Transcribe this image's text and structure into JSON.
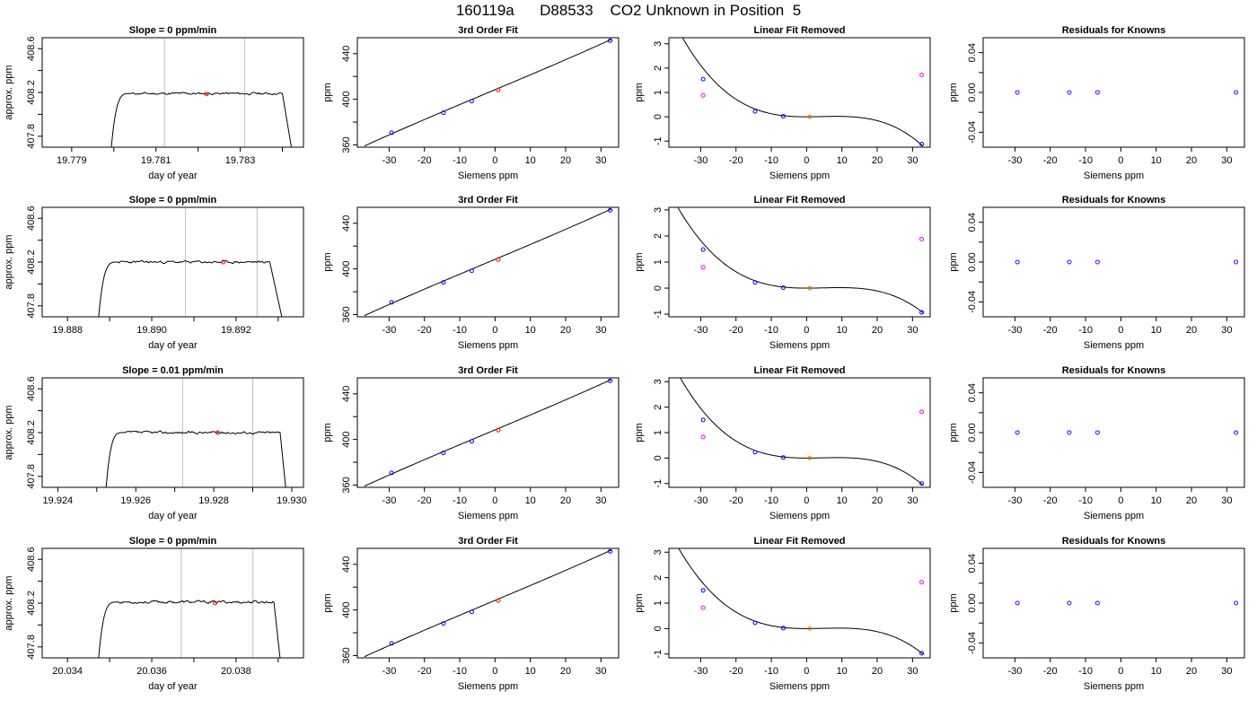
{
  "figure_title": "160119a      D88533    CO2 Unknown in Position  5",
  "colors": {
    "known": "#0000ff",
    "unknown": "#ff0000",
    "unknown_resid": "#ff8000",
    "linear_known": "#ff00ff",
    "curve": "#000000",
    "marker_line": "#bebebe"
  },
  "chart_data": [
    {
      "row": 1,
      "col": 1,
      "type": "line",
      "title": "Slope =  0  ppm/min",
      "xlabel": "day of year",
      "ylabel": "approx. ppm",
      "xlim": [
        19.7783,
        19.7845
      ],
      "ylim": [
        407.7,
        408.7
      ],
      "xticks": [
        19.779,
        19.78,
        19.781,
        19.782,
        19.783,
        19.784
      ],
      "xticklabels": [
        "19.779",
        "",
        "19.781",
        "",
        "19.783",
        ""
      ],
      "yticks": [
        407.8,
        408.0,
        408.2,
        408.4,
        408.6
      ],
      "yticklabels": [
        "407.8",
        "",
        "408.2",
        "",
        "408.6"
      ],
      "trace": {
        "x_start": 19.7799,
        "x_rise_end": 19.7804,
        "x_fall_start": 19.784,
        "x_end": 19.7843,
        "level": 408.19,
        "noise": 0.008,
        "seed": 11
      },
      "vlines": [
        19.7812,
        19.7831
      ],
      "mean_point": [
        19.7822,
        408.185
      ]
    },
    {
      "row": 1,
      "col": 2,
      "type": "scatter",
      "title": "3rd Order Fit",
      "xlabel": "Siemens ppm",
      "ylabel": "ppm",
      "xlim": [
        -39,
        35
      ],
      "ylim": [
        358,
        454
      ],
      "xticks": [
        -30,
        -20,
        -10,
        0,
        10,
        20,
        30
      ],
      "xticklabels": [
        "-30",
        "-20",
        "-10",
        "0",
        "10",
        "20",
        "30"
      ],
      "yticks": [
        360,
        380,
        400,
        420,
        440
      ],
      "yticklabels": [
        "360",
        "",
        "400",
        "",
        "440"
      ],
      "fit_range": [
        -37,
        33
      ],
      "poly": [
        408.4,
        1.3,
        0.0002,
        3e-05
      ],
      "knowns": [
        [
          -29.3,
          370.7
        ],
        [
          -14.6,
          388.2
        ],
        [
          -6.6,
          398.3
        ],
        [
          32.6,
          451.4
        ]
      ],
      "unknown": [
        0.9,
        408.2
      ]
    },
    {
      "row": 1,
      "col": 3,
      "type": "scatter",
      "title": "Linear Fit Removed",
      "xlabel": "Siemens ppm",
      "ylabel": "ppm",
      "xlim": [
        -39,
        35
      ],
      "ylim": [
        -1.25,
        3.25
      ],
      "xticks": [
        -30,
        -20,
        -10,
        0,
        10,
        20,
        30
      ],
      "xticklabels": [
        "-30",
        "-20",
        "-10",
        "0",
        "10",
        "20",
        "30"
      ],
      "yticks": [
        -1,
        0,
        1,
        2,
        3
      ],
      "yticklabels": [
        "-1",
        "0",
        "1",
        "2",
        "3"
      ],
      "fit_range": [
        -37,
        33
      ],
      "poly": [
        0,
        0,
        0.0007,
        -5.5e-05
      ],
      "knowns": [
        [
          -29.3,
          1.55
        ],
        [
          -14.6,
          0.22
        ],
        [
          -6.6,
          0.02
        ],
        [
          32.6,
          -1.12
        ]
      ],
      "linear_knowns": [
        [
          -29.3,
          0.88
        ],
        [
          32.6,
          1.72
        ]
      ],
      "unknown": [
        0.9,
        0.0
      ]
    },
    {
      "row": 1,
      "col": 4,
      "type": "scatter",
      "title": "Residuals for Knowns",
      "xlabel": "Siemens ppm",
      "ylabel": "ppm",
      "xlim": [
        -39,
        35
      ],
      "ylim": [
        -0.055,
        0.055
      ],
      "xticks": [
        -30,
        -20,
        -10,
        0,
        10,
        20,
        30
      ],
      "xticklabels": [
        "-30",
        "-20",
        "-10",
        "0",
        "10",
        "20",
        "30"
      ],
      "yticks": [
        -0.04,
        -0.02,
        0.0,
        0.02,
        0.04
      ],
      "yticklabels": [
        "-0.04",
        "",
        "0.00",
        "",
        "0.04"
      ],
      "residuals": [
        [
          -29.3,
          0.0
        ],
        [
          -14.6,
          0.0
        ],
        [
          -6.6,
          0.0
        ],
        [
          32.6,
          0.0
        ]
      ]
    },
    {
      "row": 2,
      "col": 1,
      "type": "line",
      "title": "Slope =  0  ppm/min",
      "xlabel": "day of year",
      "ylabel": "approx. ppm",
      "xlim": [
        19.8874,
        19.8936
      ],
      "ylim": [
        407.7,
        408.7
      ],
      "xticks": [
        19.888,
        19.889,
        19.89,
        19.891,
        19.892,
        19.893
      ],
      "xticklabels": [
        "19.888",
        "",
        "19.890",
        "",
        "19.892",
        ""
      ],
      "yticks": [
        407.8,
        408.0,
        408.2,
        408.4,
        408.6
      ],
      "yticklabels": [
        "407.8",
        "",
        "408.2",
        "",
        "408.6"
      ],
      "trace": {
        "x_start": 19.8887,
        "x_rise_end": 19.8892,
        "x_fall_start": 19.8928,
        "x_end": 19.8932,
        "level": 408.2,
        "noise": 0.009,
        "seed": 23
      },
      "vlines": [
        19.8908,
        19.8925
      ],
      "mean_point": [
        19.8917,
        408.2
      ]
    },
    {
      "row": 2,
      "col": 2,
      "type": "scatter",
      "title": "3rd Order Fit",
      "xlabel": "Siemens ppm",
      "ylabel": "ppm",
      "xlim": [
        -39,
        35
      ],
      "ylim": [
        358,
        454
      ],
      "xticks": [
        -30,
        -20,
        -10,
        0,
        10,
        20,
        30
      ],
      "xticklabels": [
        "-30",
        "-20",
        "-10",
        "0",
        "10",
        "20",
        "30"
      ],
      "yticks": [
        360,
        380,
        400,
        420,
        440
      ],
      "yticklabels": [
        "360",
        "",
        "400",
        "",
        "440"
      ],
      "fit_range": [
        -37,
        33
      ],
      "poly": [
        408.4,
        1.3,
        0.0002,
        3e-05
      ],
      "knowns": [
        [
          -29.3,
          370.7
        ],
        [
          -14.6,
          388.2
        ],
        [
          -6.6,
          398.3
        ],
        [
          32.6,
          451.4
        ]
      ],
      "unknown": [
        0.9,
        408.2
      ]
    },
    {
      "row": 2,
      "col": 3,
      "type": "scatter",
      "title": "Linear Fit Removed",
      "xlabel": "Siemens ppm",
      "ylabel": "ppm",
      "xlim": [
        -39,
        35
      ],
      "ylim": [
        -1.1,
        3.1
      ],
      "xticks": [
        -30,
        -20,
        -10,
        0,
        10,
        20,
        30
      ],
      "xticklabels": [
        "-30",
        "-20",
        "-10",
        "0",
        "10",
        "20",
        "30"
      ],
      "yticks": [
        -1,
        0,
        1,
        2,
        3
      ],
      "yticklabels": [
        "-1",
        "0",
        "1",
        "2",
        "3"
      ],
      "fit_range": [
        -37,
        33
      ],
      "poly": [
        0,
        0,
        0.00065,
        -4.6e-05
      ],
      "knowns": [
        [
          -29.3,
          1.48
        ],
        [
          -14.6,
          0.22
        ],
        [
          -6.6,
          0.02
        ],
        [
          32.6,
          -0.93
        ]
      ],
      "linear_knowns": [
        [
          -29.3,
          0.8
        ],
        [
          32.6,
          1.88
        ]
      ],
      "unknown": [
        0.9,
        0.0
      ]
    },
    {
      "row": 2,
      "col": 4,
      "type": "scatter",
      "title": "Residuals for Knowns",
      "xlabel": "Siemens ppm",
      "ylabel": "ppm",
      "xlim": [
        -39,
        35
      ],
      "ylim": [
        -0.055,
        0.055
      ],
      "xticks": [
        -30,
        -20,
        -10,
        0,
        10,
        20,
        30
      ],
      "xticklabels": [
        "-30",
        "-20",
        "-10",
        "0",
        "10",
        "20",
        "30"
      ],
      "yticks": [
        -0.04,
        -0.02,
        0.0,
        0.02,
        0.04
      ],
      "yticklabels": [
        "-0.04",
        "",
        "0.00",
        "",
        "0.04"
      ],
      "residuals": [
        [
          -29.3,
          0.0
        ],
        [
          -14.6,
          0.0
        ],
        [
          -6.6,
          0.0
        ],
        [
          32.6,
          0.0
        ]
      ]
    },
    {
      "row": 3,
      "col": 1,
      "type": "line",
      "title": "Slope =  0.01  ppm/min",
      "xlabel": "day of year",
      "ylabel": "approx. ppm",
      "xlim": [
        19.9236,
        19.9303
      ],
      "ylim": [
        407.7,
        408.7
      ],
      "xticks": [
        19.924,
        19.925,
        19.926,
        19.927,
        19.928,
        19.929,
        19.93
      ],
      "xticklabels": [
        "19.924",
        "",
        "19.926",
        "",
        "19.928",
        "",
        "19.930"
      ],
      "yticks": [
        407.8,
        408.0,
        408.2,
        408.4,
        408.6
      ],
      "yticklabels": [
        "407.8",
        "",
        "408.2",
        "",
        "408.6"
      ],
      "trace": {
        "x_start": 19.9252,
        "x_rise_end": 19.9257,
        "x_fall_start": 19.9297,
        "x_end": 19.9299,
        "level": 408.2,
        "noise": 0.009,
        "seed": 37
      },
      "vlines": [
        19.9272,
        19.929
      ],
      "mean_point": [
        19.9281,
        408.2
      ]
    },
    {
      "row": 3,
      "col": 2,
      "type": "scatter",
      "title": "3rd Order Fit",
      "xlabel": "Siemens ppm",
      "ylabel": "ppm",
      "xlim": [
        -39,
        35
      ],
      "ylim": [
        358,
        454
      ],
      "xticks": [
        -30,
        -20,
        -10,
        0,
        10,
        20,
        30
      ],
      "xticklabels": [
        "-30",
        "-20",
        "-10",
        "0",
        "10",
        "20",
        "30"
      ],
      "yticks": [
        360,
        380,
        400,
        420,
        440
      ],
      "yticklabels": [
        "360",
        "",
        "400",
        "",
        "440"
      ],
      "fit_range": [
        -37,
        33
      ],
      "poly": [
        408.4,
        1.3,
        0.0002,
        3e-05
      ],
      "knowns": [
        [
          -29.3,
          370.7
        ],
        [
          -14.6,
          388.2
        ],
        [
          -6.6,
          398.3
        ],
        [
          32.6,
          451.4
        ]
      ],
      "unknown": [
        0.9,
        408.2
      ]
    },
    {
      "row": 3,
      "col": 3,
      "type": "scatter",
      "title": "Linear Fit Removed",
      "xlabel": "Siemens ppm",
      "ylabel": "ppm",
      "xlim": [
        -39,
        35
      ],
      "ylim": [
        -1.15,
        3.15
      ],
      "xticks": [
        -30,
        -20,
        -10,
        0,
        10,
        20,
        30
      ],
      "xticklabels": [
        "-30",
        "-20",
        "-10",
        "0",
        "10",
        "20",
        "30"
      ],
      "yticks": [
        -1,
        0,
        1,
        2,
        3
      ],
      "yticklabels": [
        "-1",
        "0",
        "1",
        "2",
        "3"
      ],
      "fit_range": [
        -37,
        33
      ],
      "poly": [
        0,
        0,
        0.00067,
        -5e-05
      ],
      "knowns": [
        [
          -29.3,
          1.5
        ],
        [
          -14.6,
          0.23
        ],
        [
          -6.6,
          0.02
        ],
        [
          32.6,
          -1.0
        ]
      ],
      "linear_knowns": [
        [
          -29.3,
          0.83
        ],
        [
          32.6,
          1.82
        ]
      ],
      "unknown": [
        0.9,
        0.0
      ]
    },
    {
      "row": 3,
      "col": 4,
      "type": "scatter",
      "title": "Residuals for Knowns",
      "xlabel": "Siemens ppm",
      "ylabel": "ppm",
      "xlim": [
        -39,
        35
      ],
      "ylim": [
        -0.055,
        0.055
      ],
      "xticks": [
        -30,
        -20,
        -10,
        0,
        10,
        20,
        30
      ],
      "xticklabels": [
        "-30",
        "-20",
        "-10",
        "0",
        "10",
        "20",
        "30"
      ],
      "yticks": [
        -0.04,
        -0.02,
        0.0,
        0.02,
        0.04
      ],
      "yticklabels": [
        "-0.04",
        "",
        "0.00",
        "",
        "0.04"
      ],
      "residuals": [
        [
          -29.3,
          0.0
        ],
        [
          -14.6,
          0.0
        ],
        [
          -6.6,
          0.0
        ],
        [
          32.6,
          0.0
        ]
      ]
    },
    {
      "row": 4,
      "col": 1,
      "type": "line",
      "title": "Slope =  0  ppm/min",
      "xlabel": "day of year",
      "ylabel": "approx. ppm",
      "xlim": [
        20.0334,
        20.0396
      ],
      "ylim": [
        407.7,
        408.7
      ],
      "xticks": [
        20.034,
        20.035,
        20.036,
        20.037,
        20.038,
        20.039
      ],
      "xticklabels": [
        "20.034",
        "",
        "20.036",
        "",
        "20.038",
        ""
      ],
      "yticks": [
        407.8,
        408.0,
        408.2,
        408.4,
        408.6
      ],
      "yticklabels": [
        "407.8",
        "",
        "408.2",
        "",
        "408.6"
      ],
      "trace": {
        "x_start": 20.0347,
        "x_rise_end": 20.0352,
        "x_fall_start": 20.0389,
        "x_end": 20.0391,
        "level": 408.21,
        "noise": 0.01,
        "seed": 53
      },
      "vlines": [
        20.0367,
        20.0384
      ],
      "mean_point": [
        20.0375,
        408.2
      ]
    },
    {
      "row": 4,
      "col": 2,
      "type": "scatter",
      "title": "3rd Order Fit",
      "xlabel": "Siemens ppm",
      "ylabel": "ppm",
      "xlim": [
        -39,
        35
      ],
      "ylim": [
        358,
        454
      ],
      "xticks": [
        -30,
        -20,
        -10,
        0,
        10,
        20,
        30
      ],
      "xticklabels": [
        "-30",
        "-20",
        "-10",
        "0",
        "10",
        "20",
        "30"
      ],
      "yticks": [
        360,
        380,
        400,
        420,
        440
      ],
      "yticklabels": [
        "360",
        "",
        "400",
        "",
        "440"
      ],
      "fit_range": [
        -37,
        33
      ],
      "poly": [
        408.4,
        1.3,
        0.0002,
        3e-05
      ],
      "knowns": [
        [
          -29.3,
          370.7
        ],
        [
          -14.6,
          388.2
        ],
        [
          -6.6,
          398.3
        ],
        [
          32.6,
          451.4
        ]
      ],
      "unknown": [
        0.9,
        408.2
      ]
    },
    {
      "row": 4,
      "col": 3,
      "type": "scatter",
      "title": "Linear Fit Removed",
      "xlabel": "Siemens ppm",
      "ylabel": "ppm",
      "xlim": [
        -39,
        35
      ],
      "ylim": [
        -1.15,
        3.15
      ],
      "xticks": [
        -30,
        -20,
        -10,
        0,
        10,
        20,
        30
      ],
      "xticklabels": [
        "-30",
        "-20",
        "-10",
        "0",
        "10",
        "20",
        "30"
      ],
      "yticks": [
        -1,
        0,
        1,
        2,
        3
      ],
      "yticklabels": [
        "-1",
        "0",
        "1",
        "2",
        "3"
      ],
      "fit_range": [
        -37,
        33
      ],
      "poly": [
        0,
        0,
        0.00066,
        -4.8e-05
      ],
      "knowns": [
        [
          -29.3,
          1.5
        ],
        [
          -14.6,
          0.23
        ],
        [
          -6.6,
          0.02
        ],
        [
          32.6,
          -0.97
        ]
      ],
      "linear_knowns": [
        [
          -29.3,
          0.82
        ],
        [
          32.6,
          1.82
        ]
      ],
      "unknown": [
        0.9,
        0.0
      ]
    },
    {
      "row": 4,
      "col": 4,
      "type": "scatter",
      "title": "Residuals for Knowns",
      "xlabel": "Siemens ppm",
      "ylabel": "ppm",
      "xlim": [
        -39,
        35
      ],
      "ylim": [
        -0.055,
        0.055
      ],
      "xticks": [
        -30,
        -20,
        -10,
        0,
        10,
        20,
        30
      ],
      "xticklabels": [
        "-30",
        "-20",
        "-10",
        "0",
        "10",
        "20",
        "30"
      ],
      "yticks": [
        -0.04,
        -0.02,
        0.0,
        0.02,
        0.04
      ],
      "yticklabels": [
        "-0.04",
        "",
        "0.00",
        "",
        "0.04"
      ],
      "residuals": [
        [
          -29.3,
          0.0
        ],
        [
          -14.6,
          0.0
        ],
        [
          -6.6,
          0.0
        ],
        [
          32.6,
          0.0
        ]
      ]
    }
  ]
}
